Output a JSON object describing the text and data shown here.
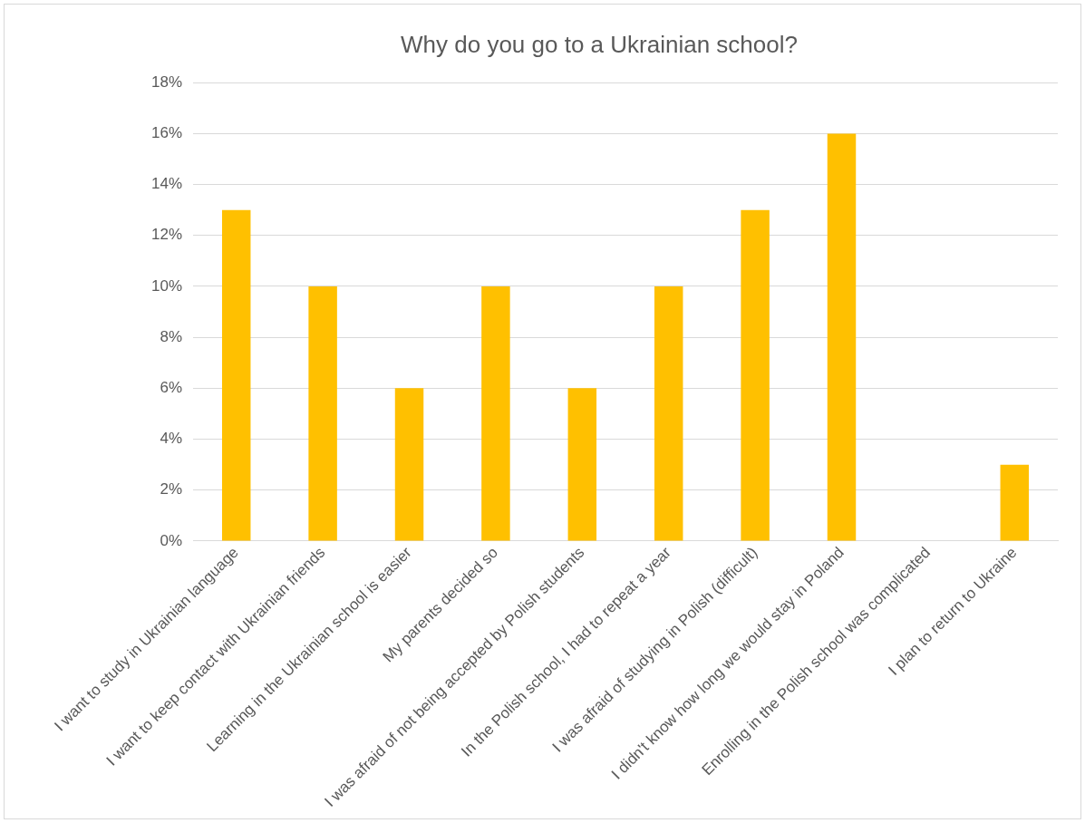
{
  "chart_data": {
    "type": "bar",
    "title": "Why do you go to a Ukrainian school?",
    "categories": [
      "I want to study in Ukrainian language",
      "I want to keep contact with Ukrainian friends",
      "Learning in the Ukrainian school is easier",
      "My parents decided so",
      "I was afraid of not being accepted by Polish students",
      "In the Polish school, I had to repeat a year",
      "I was afraid of studying in Polish (difficult)",
      "I didn't know how long we would stay in Poland",
      "Enrolling in the Polish school was complicated",
      "I plan to return to Ukraine"
    ],
    "values": [
      13,
      10,
      6,
      10,
      6,
      10,
      13,
      16,
      0,
      3
    ],
    "color": "#ffc000",
    "ylim": [
      0,
      18
    ],
    "yticks": [
      {
        "value": 0,
        "label": "0%"
      },
      {
        "value": 2,
        "label": "2%"
      },
      {
        "value": 4,
        "label": "4%"
      },
      {
        "value": 6,
        "label": "6%"
      },
      {
        "value": 8,
        "label": "8%"
      },
      {
        "value": 10,
        "label": "10%"
      },
      {
        "value": 12,
        "label": "12%"
      },
      {
        "value": 14,
        "label": "14%"
      },
      {
        "value": 16,
        "label": "16%"
      },
      {
        "value": 18,
        "label": "18%"
      }
    ],
    "grid": "y"
  }
}
